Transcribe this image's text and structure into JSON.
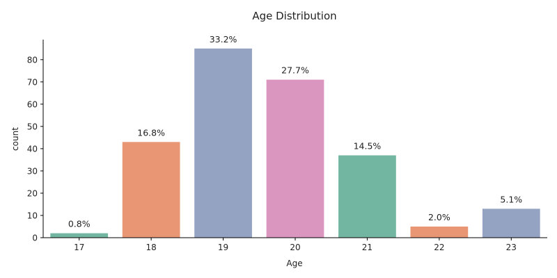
{
  "chart_data": {
    "type": "bar",
    "title": "Age Distribution",
    "xlabel": "Age",
    "ylabel": "count",
    "categories": [
      "17",
      "18",
      "19",
      "20",
      "21",
      "22",
      "23"
    ],
    "values": [
      2,
      43,
      85,
      71,
      37,
      5,
      13
    ],
    "data_labels": [
      "0.8%",
      "16.8%",
      "33.2%",
      "27.7%",
      "14.5%",
      "2.0%",
      "5.1%"
    ],
    "colors": [
      "#72b6a1",
      "#e99675",
      "#95a3c3",
      "#db96c0",
      "#72b6a1",
      "#e99675",
      "#95a3c3"
    ],
    "ylim": [
      0,
      89
    ],
    "yticks": [
      0,
      10,
      20,
      30,
      40,
      50,
      60,
      70,
      80
    ],
    "grid": false,
    "legend": "none"
  }
}
